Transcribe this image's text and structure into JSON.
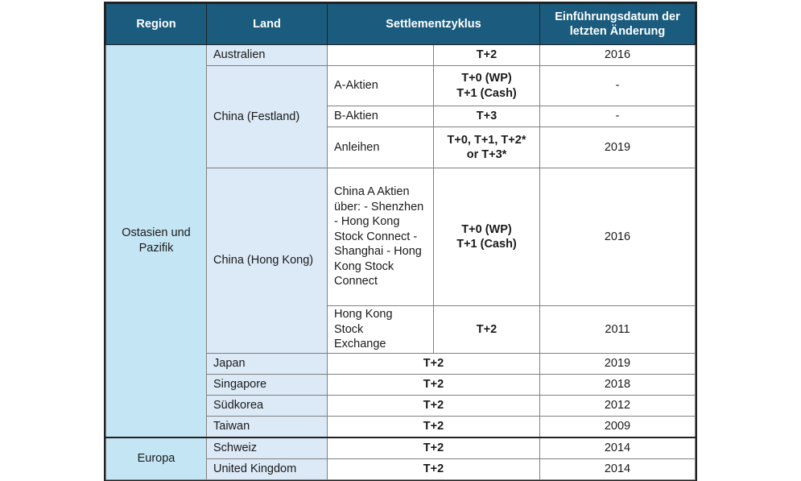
{
  "colors": {
    "header": "#1b5c7e",
    "region": "#c4e6f4",
    "land": "#dce9f6"
  },
  "headers": {
    "region": "Region",
    "land": "Land",
    "cycle": "Settlementzyklus",
    "date": "Einführungsdatum der letzten Änderung"
  },
  "regions": {
    "asia": "Ostasien und Pazifik",
    "europe": "Europa"
  },
  "rows": {
    "australia": {
      "land": "Australien",
      "sub": "",
      "cycle": "T+2",
      "date": "2016"
    },
    "china_mainland": {
      "land": "China (Festland)",
      "a": {
        "sub": "A-Aktien",
        "cycle1": "T+0 (WP)",
        "cycle2": "T+1 (Cash)",
        "date": "-"
      },
      "b": {
        "sub": "B-Aktien",
        "cycle": "T+3",
        "date": "-"
      },
      "bonds": {
        "sub": "Anleihen",
        "cycle1": "T+0, T+1, T+2*",
        "cycle2": "or T+3*",
        "date": "2019"
      }
    },
    "china_hk": {
      "land": "China (Hong Kong)",
      "connect": {
        "sub": "China A Aktien über: - Shenzhen - Hong Kong Stock Connect - Shanghai - Hong Kong Stock Connect",
        "cycle1": "T+0 (WP)",
        "cycle2": "T+1 (Cash)",
        "date": "2016"
      },
      "hkex": {
        "sub": "Hong Kong Stock Exchange",
        "cycle": "T+2",
        "date": "2011"
      }
    },
    "japan": {
      "land": "Japan",
      "cycle": "T+2",
      "date": "2019"
    },
    "singapore": {
      "land": "Singapore",
      "cycle": "T+2",
      "date": "2018"
    },
    "southkorea": {
      "land": "Südkorea",
      "cycle": "T+2",
      "date": "2012"
    },
    "taiwan": {
      "land": "Taiwan",
      "cycle": "T+2",
      "date": "2009"
    },
    "switzerland": {
      "land": "Schweiz",
      "cycle": "T+2",
      "date": "2014"
    },
    "uk": {
      "land": "United Kingdom",
      "cycle": "T+2",
      "date": "2014"
    }
  }
}
